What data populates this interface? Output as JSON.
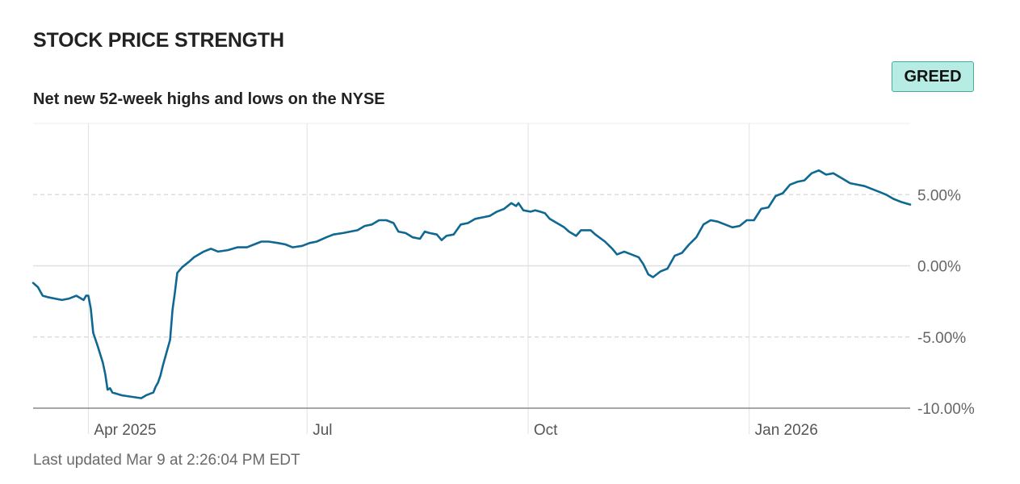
{
  "header": {
    "title": "STOCK PRICE STRENGTH",
    "subtitle": "Net new 52-week highs and lows on the NYSE",
    "badge": "GREED"
  },
  "footer": {
    "updated": "Last updated Mar 9 at 2:26:04 PM EDT"
  },
  "colors": {
    "line": "#0e6892",
    "badge_bg": "#b7ece4",
    "badge_border": "#4aa89a"
  },
  "chart_data": {
    "type": "line",
    "title": "STOCK PRICE STRENGTH",
    "subtitle": "Net new 52-week highs and lows on the NYSE",
    "x_start": "2025-03-09",
    "x_end": "2026-03-09",
    "ylim": [
      -10,
      10
    ],
    "yticks": [
      5,
      0,
      -5,
      -10
    ],
    "ytick_labels": [
      "5.00%",
      "0.00%",
      "-5.00%",
      "-10.00%"
    ],
    "xticks": [
      "2025-04-01",
      "2025-07-01",
      "2025-10-01",
      "2026-01-01"
    ],
    "xtick_labels": [
      "Apr 2025",
      "Jul",
      "Oct",
      "Jan 2026"
    ],
    "grid": true,
    "series": [
      {
        "values": [
          [
            "2025-03-09",
            -1.2
          ],
          [
            "2025-03-11",
            -1.5
          ],
          [
            "2025-03-13",
            -2.1
          ],
          [
            "2025-03-15",
            -2.2
          ],
          [
            "2025-03-18",
            -2.3
          ],
          [
            "2025-03-21",
            -2.4
          ],
          [
            "2025-03-24",
            -2.3
          ],
          [
            "2025-03-27",
            -2.1
          ],
          [
            "2025-03-29",
            -2.3
          ],
          [
            "2025-03-30",
            -2.4
          ],
          [
            "2025-03-31",
            -2.1
          ],
          [
            "2025-04-01",
            -2.1
          ],
          [
            "2025-04-02",
            -3.0
          ],
          [
            "2025-04-03",
            -4.7
          ],
          [
            "2025-04-05",
            -5.7
          ],
          [
            "2025-04-07",
            -6.8
          ],
          [
            "2025-04-08",
            -7.6
          ],
          [
            "2025-04-09",
            -8.7
          ],
          [
            "2025-04-10",
            -8.6
          ],
          [
            "2025-04-11",
            -8.9
          ],
          [
            "2025-04-15",
            -9.1
          ],
          [
            "2025-04-19",
            -9.2
          ],
          [
            "2025-04-23",
            -9.3
          ],
          [
            "2025-04-25",
            -9.1
          ],
          [
            "2025-04-28",
            -8.9
          ],
          [
            "2025-04-29",
            -8.5
          ],
          [
            "2025-04-30",
            -8.2
          ],
          [
            "2025-05-01",
            -7.7
          ],
          [
            "2025-05-02",
            -7.0
          ],
          [
            "2025-05-05",
            -5.2
          ],
          [
            "2025-05-06",
            -3.1
          ],
          [
            "2025-05-07",
            -1.9
          ],
          [
            "2025-05-08",
            -0.5
          ],
          [
            "2025-05-10",
            -0.1
          ],
          [
            "2025-05-13",
            0.3
          ],
          [
            "2025-05-15",
            0.6
          ],
          [
            "2025-05-19",
            1.0
          ],
          [
            "2025-05-22",
            1.2
          ],
          [
            "2025-05-25",
            1.0
          ],
          [
            "2025-05-29",
            1.1
          ],
          [
            "2025-06-02",
            1.3
          ],
          [
            "2025-06-06",
            1.3
          ],
          [
            "2025-06-09",
            1.5
          ],
          [
            "2025-06-12",
            1.7
          ],
          [
            "2025-06-15",
            1.7
          ],
          [
            "2025-06-19",
            1.6
          ],
          [
            "2025-06-22",
            1.5
          ],
          [
            "2025-06-25",
            1.3
          ],
          [
            "2025-06-29",
            1.4
          ],
          [
            "2025-07-02",
            1.6
          ],
          [
            "2025-07-05",
            1.7
          ],
          [
            "2025-07-09",
            2.0
          ],
          [
            "2025-07-12",
            2.2
          ],
          [
            "2025-07-16",
            2.3
          ],
          [
            "2025-07-19",
            2.4
          ],
          [
            "2025-07-22",
            2.5
          ],
          [
            "2025-07-25",
            2.8
          ],
          [
            "2025-07-28",
            2.9
          ],
          [
            "2025-07-31",
            3.2
          ],
          [
            "2025-08-03",
            3.2
          ],
          [
            "2025-08-06",
            3.0
          ],
          [
            "2025-08-08",
            2.4
          ],
          [
            "2025-08-11",
            2.3
          ],
          [
            "2025-08-14",
            2.0
          ],
          [
            "2025-08-17",
            1.9
          ],
          [
            "2025-08-19",
            2.4
          ],
          [
            "2025-08-21",
            2.3
          ],
          [
            "2025-08-24",
            2.2
          ],
          [
            "2025-08-26",
            1.8
          ],
          [
            "2025-08-28",
            2.1
          ],
          [
            "2025-08-31",
            2.2
          ],
          [
            "2025-09-03",
            2.9
          ],
          [
            "2025-09-06",
            3.0
          ],
          [
            "2025-09-09",
            3.3
          ],
          [
            "2025-09-12",
            3.4
          ],
          [
            "2025-09-15",
            3.5
          ],
          [
            "2025-09-18",
            3.8
          ],
          [
            "2025-09-21",
            4.0
          ],
          [
            "2025-09-24",
            4.4
          ],
          [
            "2025-09-26",
            4.2
          ],
          [
            "2025-09-27",
            4.4
          ],
          [
            "2025-09-29",
            3.9
          ],
          [
            "2025-10-02",
            3.8
          ],
          [
            "2025-10-04",
            3.9
          ],
          [
            "2025-10-06",
            3.8
          ],
          [
            "2025-10-08",
            3.7
          ],
          [
            "2025-10-10",
            3.3
          ],
          [
            "2025-10-13",
            3.0
          ],
          [
            "2025-10-16",
            2.7
          ],
          [
            "2025-10-18",
            2.4
          ],
          [
            "2025-10-21",
            2.1
          ],
          [
            "2025-10-23",
            2.5
          ],
          [
            "2025-10-27",
            2.5
          ],
          [
            "2025-10-29",
            2.2
          ],
          [
            "2025-11-02",
            1.7
          ],
          [
            "2025-11-05",
            1.2
          ],
          [
            "2025-11-07",
            0.8
          ],
          [
            "2025-11-10",
            1.0
          ],
          [
            "2025-11-13",
            0.8
          ],
          [
            "2025-11-16",
            0.6
          ],
          [
            "2025-11-18",
            0.1
          ],
          [
            "2025-11-20",
            -0.6
          ],
          [
            "2025-11-22",
            -0.8
          ],
          [
            "2025-11-25",
            -0.4
          ],
          [
            "2025-11-28",
            -0.2
          ],
          [
            "2025-12-01",
            0.7
          ],
          [
            "2025-12-04",
            0.9
          ],
          [
            "2025-12-07",
            1.5
          ],
          [
            "2025-12-10",
            2.0
          ],
          [
            "2025-12-13",
            2.9
          ],
          [
            "2025-12-16",
            3.2
          ],
          [
            "2025-12-19",
            3.1
          ],
          [
            "2025-12-22",
            2.9
          ],
          [
            "2025-12-25",
            2.7
          ],
          [
            "2025-12-28",
            2.8
          ],
          [
            "2025-12-31",
            3.2
          ],
          [
            "2026-01-03",
            3.2
          ],
          [
            "2026-01-06",
            4.0
          ],
          [
            "2026-01-09",
            4.1
          ],
          [
            "2026-01-12",
            4.9
          ],
          [
            "2026-01-15",
            5.1
          ],
          [
            "2026-01-18",
            5.7
          ],
          [
            "2026-01-21",
            5.9
          ],
          [
            "2026-01-24",
            6.0
          ],
          [
            "2026-01-27",
            6.5
          ],
          [
            "2026-01-30",
            6.7
          ],
          [
            "2026-02-02",
            6.4
          ],
          [
            "2026-02-05",
            6.5
          ],
          [
            "2026-02-09",
            6.1
          ],
          [
            "2026-02-12",
            5.8
          ],
          [
            "2026-02-15",
            5.7
          ],
          [
            "2026-02-18",
            5.6
          ],
          [
            "2026-02-21",
            5.4
          ],
          [
            "2026-02-24",
            5.2
          ],
          [
            "2026-02-27",
            5.0
          ],
          [
            "2026-03-02",
            4.7
          ],
          [
            "2026-03-05",
            4.5
          ],
          [
            "2026-03-09",
            4.3
          ]
        ]
      }
    ]
  }
}
